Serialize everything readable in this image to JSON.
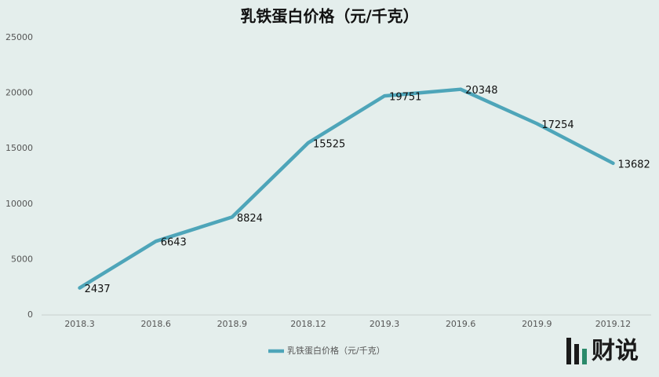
{
  "chart_data": {
    "type": "line",
    "title": "乳铁蛋白价格（元/千克）",
    "categories": [
      "2018.3",
      "2018.6",
      "2018.9",
      "2018.12",
      "2019.3",
      "2019.6",
      "2019.9",
      "2019.12"
    ],
    "series": [
      {
        "name": "乳铁蛋白价格（元/千克）",
        "color": "#4ea5b9",
        "values": [
          2437,
          6643,
          8824,
          15525,
          19751,
          20348,
          17254,
          13682
        ]
      }
    ],
    "ylim": [
      0,
      25000
    ],
    "yticks": [
      0,
      5000,
      10000,
      15000,
      20000,
      25000
    ],
    "grid": false,
    "legend": "bottom",
    "annotations": [
      "财说"
    ]
  }
}
